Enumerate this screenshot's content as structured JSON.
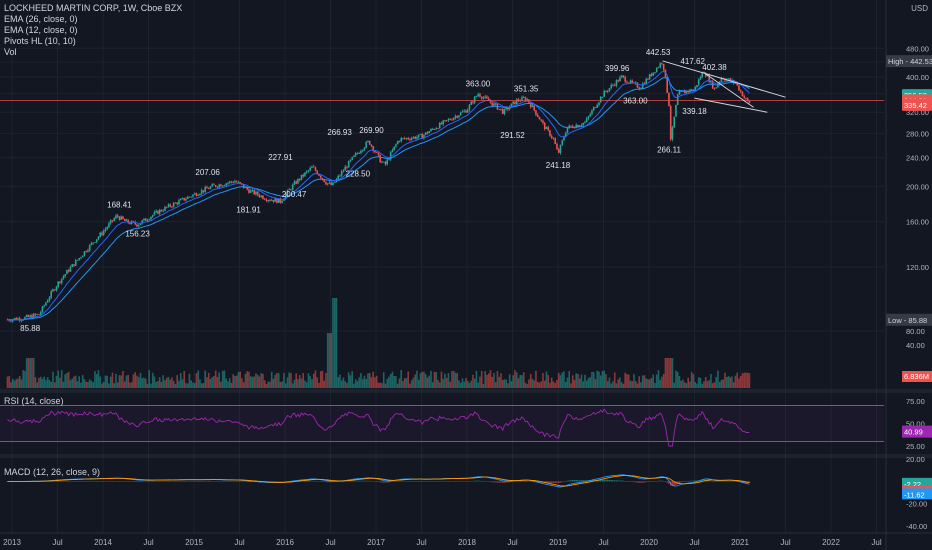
{
  "header": {
    "symbol_line": "LOCKHEED MARTIN CORP, 1W, Cboe BZX",
    "indicators": [
      "EMA (26, close, 0)",
      "EMA (12, close, 0)",
      "Pivots HL (10, 10)",
      "Vol"
    ],
    "currency": "USD"
  },
  "colors": {
    "background": "#131722",
    "up": "#26a69a",
    "down": "#ef5350",
    "ema": "#2196f3",
    "ema_alt": "#2962ff",
    "rsi": "#9c27b0",
    "grid": "#1e222d",
    "axis_text": "#b2b5be"
  },
  "chart_data": [
    {
      "type": "candlestick",
      "title": "LOCKHEED MARTIN CORP, 1W, Cboe BZX",
      "x_ticks": [
        "2013",
        "Jul",
        "2014",
        "Jul",
        "2015",
        "Jul",
        "2016",
        "Jul",
        "2017",
        "Jul",
        "2018",
        "Jul",
        "2019",
        "Jul",
        "2020",
        "Jul",
        "2021",
        "Jul",
        "2022",
        "Jul"
      ],
      "y_ticks": [
        80,
        120,
        160,
        200,
        240,
        280,
        320,
        360,
        400,
        440,
        480
      ],
      "y_tick_labels": [
        "80.00",
        "120.00",
        "160.00",
        "200.00",
        "240.00",
        "280.00",
        "320.00",
        "360.00",
        "400.00",
        "440.00",
        "480.00"
      ],
      "ylim": [
        70,
        495
      ],
      "price_path": [
        [
          2012.95,
          86
        ],
        [
          2013.15,
          87
        ],
        [
          2013.3,
          89
        ],
        [
          2013.5,
          108
        ],
        [
          2013.75,
          128
        ],
        [
          2014.0,
          150
        ],
        [
          2014.15,
          166
        ],
        [
          2014.25,
          160
        ],
        [
          2014.38,
          157
        ],
        [
          2014.6,
          170
        ],
        [
          2014.9,
          185
        ],
        [
          2015.2,
          200
        ],
        [
          2015.45,
          207
        ],
        [
          2015.6,
          195
        ],
        [
          2015.8,
          185
        ],
        [
          2015.95,
          182
        ],
        [
          2016.1,
          203
        ],
        [
          2016.3,
          226
        ],
        [
          2016.45,
          205
        ],
        [
          2016.52,
          201
        ],
        [
          2016.75,
          240
        ],
        [
          2016.92,
          266
        ],
        [
          2017.05,
          235
        ],
        [
          2017.1,
          229
        ],
        [
          2017.25,
          269
        ],
        [
          2017.5,
          275
        ],
        [
          2017.75,
          300
        ],
        [
          2018.0,
          325
        ],
        [
          2018.12,
          360
        ],
        [
          2018.3,
          335
        ],
        [
          2018.4,
          320
        ],
        [
          2018.55,
          345
        ],
        [
          2018.65,
          350
        ],
        [
          2018.85,
          292
        ],
        [
          2018.95,
          270
        ],
        [
          2019.0,
          245
        ],
        [
          2019.1,
          290
        ],
        [
          2019.3,
          300
        ],
        [
          2019.5,
          360
        ],
        [
          2019.7,
          400
        ],
        [
          2019.8,
          385
        ],
        [
          2019.9,
          375
        ],
        [
          2020.0,
          400
        ],
        [
          2020.15,
          442
        ],
        [
          2020.22,
          335
        ],
        [
          2020.24,
          266
        ],
        [
          2020.32,
          360
        ],
        [
          2020.5,
          370
        ],
        [
          2020.6,
          417
        ],
        [
          2020.72,
          370
        ],
        [
          2020.8,
          400
        ],
        [
          2020.95,
          385
        ],
        [
          2021.05,
          350
        ],
        [
          2021.1,
          339
        ],
        [
          2021.12,
          345
        ]
      ],
      "pivot_labels": [
        {
          "x": 2013.2,
          "value": 85.88,
          "label": "85.88",
          "type": "low"
        },
        {
          "x": 2014.18,
          "value": 168.41,
          "label": "168.41",
          "type": "high"
        },
        {
          "x": 2014.38,
          "value": 156.23,
          "label": "156.23",
          "type": "low"
        },
        {
          "x": 2015.15,
          "value": 207.06,
          "label": "207.06",
          "type": "high"
        },
        {
          "x": 2015.6,
          "value": 181.91,
          "label": "181.91",
          "type": "low"
        },
        {
          "x": 2015.95,
          "value": 227.91,
          "label": "227.91",
          "type": "high"
        },
        {
          "x": 2016.1,
          "value": 200.47,
          "label": "200.47",
          "type": "low"
        },
        {
          "x": 2016.6,
          "value": 266.93,
          "label": "266.93",
          "type": "high"
        },
        {
          "x": 2016.8,
          "value": 228.5,
          "label": "228.50",
          "type": "low"
        },
        {
          "x": 2016.95,
          "value": 269.9,
          "label": "269.90",
          "type": "high"
        },
        {
          "x": 2018.12,
          "value": 363.0,
          "label": "363.00",
          "type": "high"
        },
        {
          "x": 2018.65,
          "value": 351.35,
          "label": "351.35",
          "type": "high"
        },
        {
          "x": 2018.5,
          "value": 291.52,
          "label": "291.52",
          "type": "low"
        },
        {
          "x": 2019.0,
          "value": 241.18,
          "label": "241.18",
          "type": "low"
        },
        {
          "x": 2019.65,
          "value": 399.96,
          "label": "399.96",
          "type": "high"
        },
        {
          "x": 2019.85,
          "value": 363.0,
          "label": "363.00",
          "type": "low"
        },
        {
          "x": 2020.1,
          "value": 442.53,
          "label": "442.53",
          "type": "high"
        },
        {
          "x": 2020.48,
          "value": 417.62,
          "label": "417.62",
          "type": "high"
        },
        {
          "x": 2020.72,
          "value": 402.38,
          "label": "402.38",
          "type": "high"
        },
        {
          "x": 2020.5,
          "value": 339.18,
          "label": "339.18",
          "type": "low"
        },
        {
          "x": 2020.22,
          "value": 266.11,
          "label": "266.11",
          "type": "low"
        }
      ],
      "trend_lines": [
        {
          "x1": 2020.15,
          "y1": 443,
          "x2": 2021.5,
          "y2": 352
        },
        {
          "x1": 2020.5,
          "y1": 350,
          "x2": 2021.3,
          "y2": 320
        },
        {
          "x1": 2020.6,
          "y1": 412,
          "x2": 2021.15,
          "y2": 330
        }
      ],
      "price_axis_labels": [
        {
          "value": 442.53,
          "label": "High - 442.53",
          "kind": "high-low"
        },
        {
          "value": 356.53,
          "label": "356.53",
          "kind": "ema"
        },
        {
          "value": 344.91,
          "label": "344.91",
          "kind": "ema-red"
        },
        {
          "value": 335.42,
          "label": "335.42",
          "kind": "last"
        },
        {
          "value": 85.88,
          "label": "Low - 85.88",
          "kind": "high-low"
        }
      ],
      "horizontal_line_value": 344.91
    },
    {
      "type": "bar",
      "title": "Vol",
      "y_ticks_labels": [
        "40.00"
      ],
      "last_label": "6.836M"
    },
    {
      "type": "line",
      "title": "RSI (14, close)",
      "ylim": [
        15,
        85
      ],
      "y_tick_labels": [
        "75.00",
        "50.00",
        "25.00"
      ],
      "upper_band": 70,
      "lower_band": 30,
      "last_value": "40.99"
    },
    {
      "type": "line",
      "title": "MACD (12, 26, close, 9)",
      "ylim": [
        -42,
        22
      ],
      "y_tick_labels": [
        "20.00",
        "-20.00",
        "-40.00"
      ],
      "last_labels": [
        "-2.22",
        "-9.40",
        "-11.62"
      ]
    }
  ]
}
